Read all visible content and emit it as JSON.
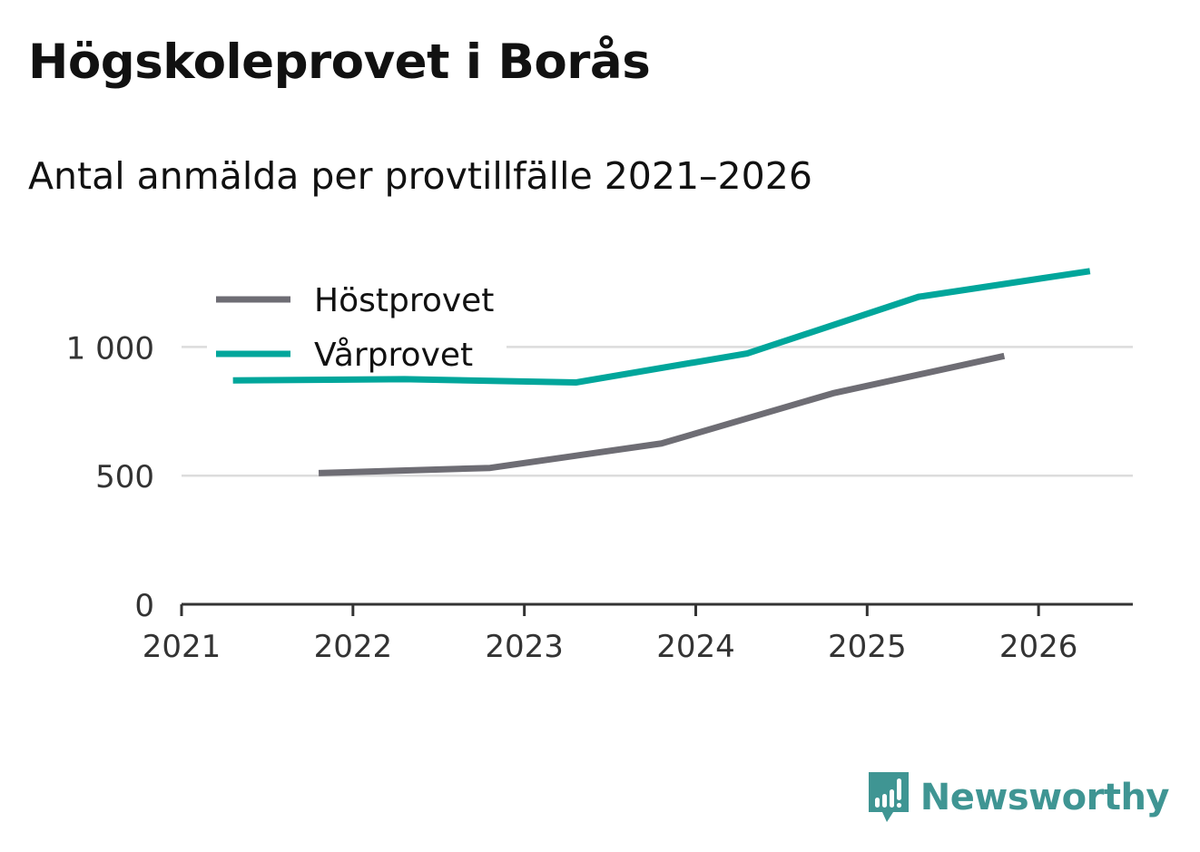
{
  "title": "Högskoleprovet i Borås",
  "subtitle": "Antal anmälda per provtillfälle 2021–2026",
  "brand": {
    "name": "Newsworthy",
    "color": "#3f9593",
    "icon": "speech-bubble-bar-chart-icon"
  },
  "chart_data": {
    "type": "line",
    "xlim": [
      2021,
      2026.55
    ],
    "ylim": [
      0,
      1400
    ],
    "x_ticks": [
      2021,
      2022,
      2023,
      2024,
      2025,
      2026
    ],
    "x_tick_labels": [
      "2021",
      "2022",
      "2023",
      "2024",
      "2025",
      "2026"
    ],
    "y_ticks": [
      0,
      500,
      1000
    ],
    "y_tick_labels": [
      "0",
      "500",
      "1 000"
    ],
    "grid": true,
    "legend_position": "top-left",
    "series": [
      {
        "name": "Höstprovet",
        "color": "#6e6d74",
        "x": [
          2021.8,
          2022.8,
          2023.8,
          2024.8,
          2025.8
        ],
        "y": [
          510,
          530,
          625,
          820,
          965
        ]
      },
      {
        "name": "Vårprovet",
        "color": "#00a69b",
        "x": [
          2021.3,
          2022.3,
          2023.3,
          2024.3,
          2025.3,
          2026.3
        ],
        "y": [
          870,
          875,
          862,
          975,
          1195,
          1295
        ]
      }
    ]
  }
}
